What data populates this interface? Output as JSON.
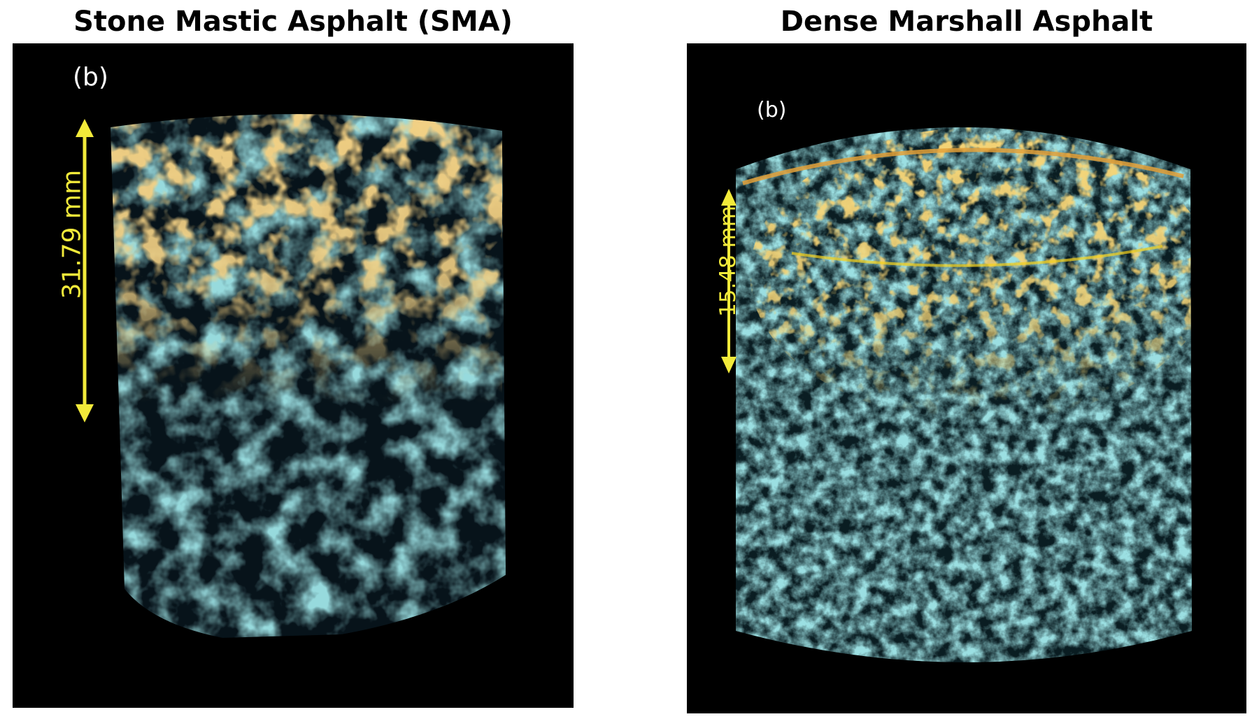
{
  "panels": [
    {
      "title": "Stone Mastic Asphalt (SMA)",
      "sublabel": "(b)",
      "dimension": "31.79 mm"
    },
    {
      "title": "Dense Marshall Asphalt",
      "sublabel": "(b)",
      "dimension": "15.48 mm"
    }
  ],
  "colors": {
    "background": "#000000",
    "void_network": "#4fb3b8",
    "damage": "#e3a13a",
    "damage_highlight": "#f5d21c",
    "dimension_arrow": "#f2ea3a"
  }
}
